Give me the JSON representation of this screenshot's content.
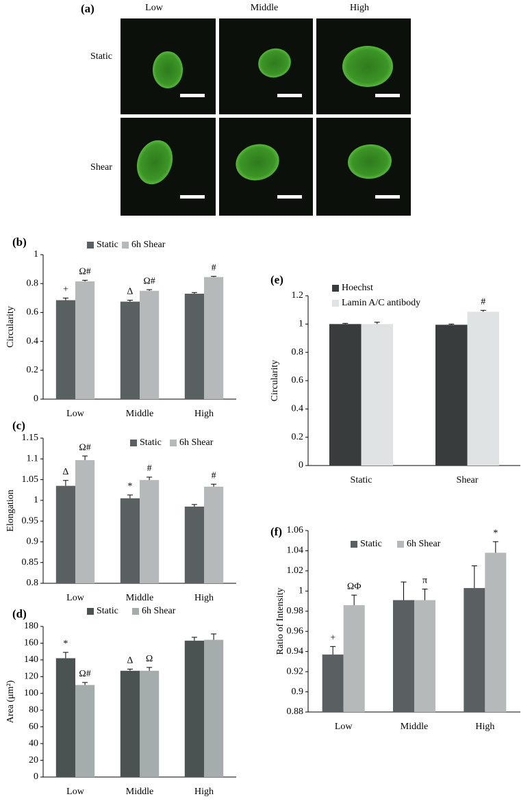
{
  "panel_a": {
    "label": "(a)",
    "columns": [
      "Low",
      "Middle",
      "High"
    ],
    "rows": [
      "Static",
      "Shear"
    ]
  },
  "chart_data": [
    {
      "type": "bar",
      "label": "(b)",
      "y_label": "Circularity",
      "categories": [
        "Low",
        "Middle",
        "High"
      ],
      "ylim": [
        0,
        1
      ],
      "yticks": [
        0,
        0.2,
        0.4,
        0.6,
        0.8,
        1
      ],
      "series": [
        {
          "name": "Static",
          "color": "#5a6062",
          "values": [
            0.685,
            0.675,
            0.73
          ],
          "errors": [
            0.015,
            0.01,
            0.008
          ],
          "annotations": [
            "+",
            "Δ",
            null
          ]
        },
        {
          "name": "6h Shear",
          "color": "#b5b9b9",
          "values": [
            0.815,
            0.75,
            0.845
          ],
          "errors": [
            0.008,
            0.008,
            0.005
          ],
          "annotations": [
            "Ω#",
            "Ω#",
            "#"
          ]
        }
      ]
    },
    {
      "type": "bar",
      "label": "(c)",
      "y_label": "Elongation",
      "categories": [
        "Low",
        "Middle",
        "High"
      ],
      "ylim": [
        0.8,
        1.15
      ],
      "yticks": [
        0.8,
        0.85,
        0.9,
        0.95,
        1,
        1.05,
        1.1,
        1.15
      ],
      "series": [
        {
          "name": "Static",
          "color": "#5a6062",
          "values": [
            1.035,
            1.005,
            0.985
          ],
          "errors": [
            0.013,
            0.008,
            0.005
          ],
          "annotations": [
            "Δ",
            "*",
            null
          ]
        },
        {
          "name": "6h Shear",
          "color": "#b5b9b9",
          "values": [
            1.097,
            1.049,
            1.033
          ],
          "errors": [
            0.01,
            0.007,
            0.006
          ],
          "annotations": [
            "Ω#",
            "#",
            "#"
          ]
        }
      ]
    },
    {
      "type": "bar",
      "label": "(d)",
      "y_label": "Area (μm²)",
      "categories": [
        "Low",
        "Middle",
        "High"
      ],
      "ylim": [
        0,
        180
      ],
      "yticks": [
        0,
        20,
        40,
        60,
        80,
        100,
        120,
        140,
        160,
        180
      ],
      "series": [
        {
          "name": "Static",
          "color": "#4a5252",
          "values": [
            142,
            127,
            163
          ],
          "errors": [
            7,
            2,
            4
          ],
          "annotations": [
            "*",
            "Δ",
            null
          ]
        },
        {
          "name": "6h Shear",
          "color": "#a5acac",
          "values": [
            110,
            127,
            164
          ],
          "errors": [
            3,
            4,
            7
          ],
          "annotations": [
            "Ω#",
            "Ω",
            null
          ]
        }
      ]
    },
    {
      "type": "bar",
      "label": "(e)",
      "y_label": "Circularity",
      "categories": [
        "Static",
        "Shear"
      ],
      "ylim": [
        0,
        1.2
      ],
      "yticks": [
        0,
        0.2,
        0.4,
        0.6,
        0.8,
        1,
        1.2
      ],
      "series": [
        {
          "name": "Hoechst",
          "color": "#383c3d",
          "values": [
            1.0,
            0.995
          ],
          "errors": [
            0.005,
            0.005
          ],
          "annotations": [
            null,
            null
          ]
        },
        {
          "name": "Lamin A/C antibody",
          "color": "#dfe3e3",
          "values": [
            1.0,
            1.087
          ],
          "errors": [
            0.013,
            0.01
          ],
          "annotations": [
            null,
            "#"
          ]
        }
      ]
    },
    {
      "type": "bar",
      "label": "(f)",
      "y_label": "Ratio of Intensity",
      "categories": [
        "Low",
        "Middle",
        "High"
      ],
      "ylim": [
        0.88,
        1.06
      ],
      "yticks": [
        0.88,
        0.9,
        0.92,
        0.94,
        0.96,
        0.98,
        1,
        1.02,
        1.04,
        1.06
      ],
      "series": [
        {
          "name": "Static",
          "color": "#5a6062",
          "values": [
            0.937,
            0.991,
            1.003
          ],
          "errors": [
            0.008,
            0.018,
            0.022
          ],
          "annotations": [
            "+",
            null,
            null
          ]
        },
        {
          "name": "6h Shear",
          "color": "#b5b9b9",
          "values": [
            0.986,
            0.991,
            1.038
          ],
          "errors": [
            0.01,
            0.011,
            0.011
          ],
          "annotations": [
            "ΩΦ",
            "π",
            "*"
          ]
        }
      ]
    }
  ]
}
